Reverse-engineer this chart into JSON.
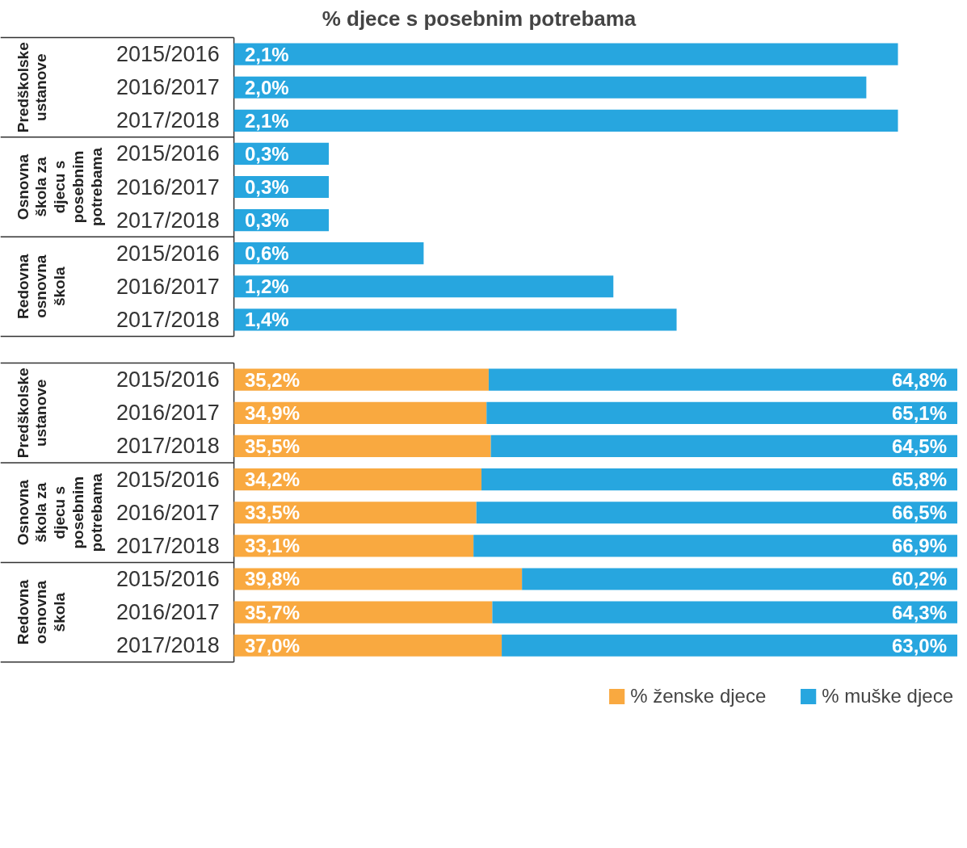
{
  "chart_data": [
    {
      "type": "bar",
      "orientation": "horizontal",
      "title": "% djece s posebnim potrebama",
      "categories": [
        "2015/2016",
        "2016/2017",
        "2017/2018",
        "2015/2016",
        "2016/2017",
        "2017/2018",
        "2015/2016",
        "2016/2017",
        "2017/2018"
      ],
      "annotations": [
        "Predškolske ustanove",
        "Osnovna škola za djecu s posebnim potrebama",
        "Redovna osnovna škola"
      ],
      "values": [
        2.1,
        2.0,
        2.1,
        0.3,
        0.3,
        0.3,
        0.6,
        1.2,
        1.4
      ],
      "color": "#27a6df",
      "value_labels": [
        "2,1%",
        "2,0%",
        "2,1%",
        "0,3%",
        "0,3%",
        "0,3%",
        "0,6%",
        "1,2%",
        "1,4%"
      ]
    },
    {
      "type": "bar",
      "orientation": "horizontal",
      "stacked": true,
      "categories": [
        "2015/2016",
        "2016/2017",
        "2017/2018",
        "2015/2016",
        "2016/2017",
        "2017/2018",
        "2015/2016",
        "2016/2017",
        "2017/2018"
      ],
      "annotations": [
        "Predškolske ustanove",
        "Osnovna škola za djecu s posebnim potrebama",
        "Redovna osnovna škola"
      ],
      "series": [
        {
          "name": "% ženske djece",
          "color": "#f9a940",
          "values": [
            35.2,
            34.9,
            35.5,
            34.2,
            33.5,
            33.1,
            39.8,
            35.7,
            37.0
          ],
          "value_labels": [
            "35,2%",
            "34,9%",
            "35,5%",
            "34,2%",
            "33,5%",
            "33,1%",
            "39,8%",
            "35,7%",
            "37,0%"
          ]
        },
        {
          "name": "% muške djece",
          "color": "#27a6df",
          "values": [
            64.8,
            65.1,
            64.5,
            65.8,
            66.5,
            66.9,
            60.2,
            64.3,
            63.0
          ],
          "value_labels": [
            "64,8%",
            "65,1%",
            "64,5%",
            "65,8%",
            "66,5%",
            "66,9%",
            "60,2%",
            "64,3%",
            "63,0%"
          ]
        }
      ],
      "xlim": [
        0,
        100
      ],
      "legend": "bottom right"
    }
  ]
}
